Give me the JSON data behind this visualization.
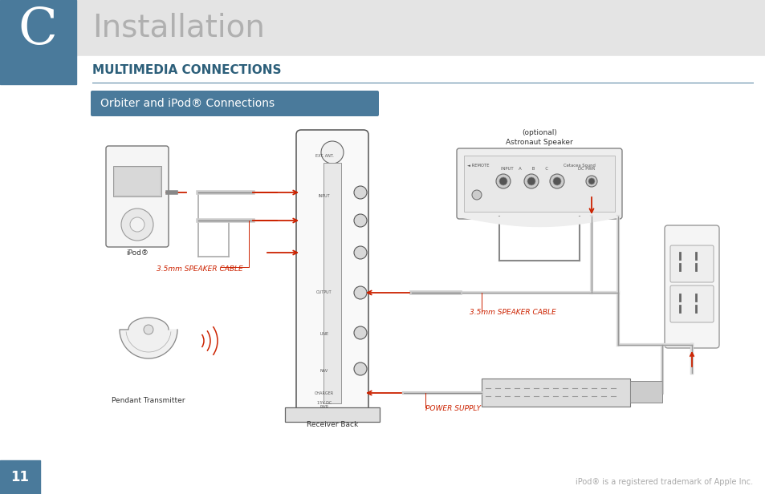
{
  "page_bg": "#ffffff",
  "header_bg": "#e4e4e4",
  "sidebar_bg": "#4a7a9b",
  "title_text": "Installation",
  "title_color": "#b0b0b0",
  "title_fontsize": 28,
  "sidebar_letter": "C",
  "sidebar_letter_color": "#ffffff",
  "section_title": "MULTIMEDIA CONNECTIONS",
  "section_title_color": "#2c5f7a",
  "section_title_fontsize": 11,
  "section_line_color": "#4a7a9b",
  "subsection_bg": "#4a7a9b",
  "subsection_text": "Orbiter and iPod® Connections",
  "subsection_text_color": "#ffffff",
  "subsection_fontsize": 10,
  "page_number": "11",
  "page_number_color": "#ffffff",
  "footer_text": "iPod® is a registered trademark of Apple Inc.",
  "footer_color": "#aaaaaa",
  "footer_fontsize": 7,
  "label_ipod": "iPod®",
  "label_pendant": "Pendant Transmitter",
  "label_receiver": "Receiver Back",
  "label_astronaut1": "Astronaut Speaker",
  "label_astronaut2": "(optional)",
  "label_cable1": "3.5mm SPEAKER CABLE",
  "label_cable2": "3.5mm SPEAKER CABLE",
  "label_power": "POWER SUPPLY",
  "label_color": "#333333",
  "arrow_color": "#cc2200",
  "label_cable_color": "#cc2200",
  "small_fontsize": 6.5,
  "tiny_fontsize": 5.5
}
